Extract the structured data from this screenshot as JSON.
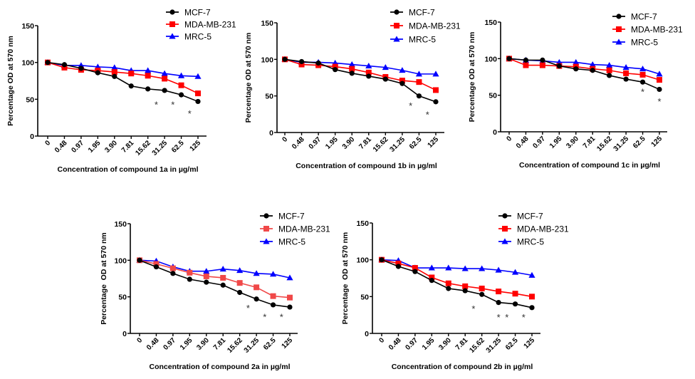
{
  "chart_data": [
    {
      "type": "line",
      "id": "1a",
      "title": "",
      "xlabel": "Concentration of compound 1a in µg/ml",
      "ylabel": "Percentage OD at 570 nm",
      "categories": [
        "0",
        "0.48",
        "0.97",
        "1.95",
        "3.90",
        "7.81",
        "15.62",
        "31.25",
        "62.5",
        "125"
      ],
      "yticks": [
        "0",
        "50",
        "100",
        "150"
      ],
      "ylim": [
        0,
        150
      ],
      "legend_position": "top-right",
      "series": [
        {
          "name": "MCF-7",
          "color": "#000000",
          "marker": "circle",
          "values": [
            100,
            97,
            92,
            86,
            81,
            68,
            64,
            62,
            56,
            47
          ]
        },
        {
          "name": "MDA-MB-231",
          "color": "#ff0000",
          "marker": "square",
          "values": [
            100,
            93,
            90,
            89,
            87,
            85,
            82,
            78,
            69,
            58
          ]
        },
        {
          "name": "MRC-5",
          "color": "#0000ff",
          "marker": "triangle",
          "values": [
            100,
            96,
            96,
            94,
            93,
            89,
            89,
            85,
            82,
            81
          ]
        }
      ],
      "annotations": [
        {
          "text": "*",
          "between": [
            "15.62",
            "31.25"
          ],
          "y": 44
        },
        {
          "text": "*",
          "between": [
            "31.25",
            "62.5"
          ],
          "y": 44
        },
        {
          "text": "*",
          "between": [
            "62.5",
            "125"
          ],
          "y": 32
        }
      ]
    },
    {
      "type": "line",
      "id": "1b",
      "title": "",
      "xlabel": "Concentration of compound 1b in µg/ml",
      "ylabel": "Percentage OD at 570 nm",
      "categories": [
        "0",
        "0.48",
        "0.97",
        "1.95",
        "3.90",
        "7.81",
        "15.62",
        "31.25",
        "62.5",
        "125"
      ],
      "yticks": [
        "0",
        "50",
        "100",
        "150"
      ],
      "ylim": [
        0,
        150
      ],
      "legend_position": "top-right",
      "series": [
        {
          "name": "MCF-7",
          "color": "#000000",
          "marker": "circle",
          "values": [
            100,
            97,
            95,
            86,
            81,
            77,
            73,
            67,
            50,
            42
          ]
        },
        {
          "name": "MDA-MB-231",
          "color": "#ff0000",
          "marker": "square",
          "values": [
            100,
            93,
            92,
            90,
            87,
            82,
            76,
            71,
            69,
            58
          ]
        },
        {
          "name": "MRC-5",
          "color": "#0000ff",
          "marker": "triangle",
          "values": [
            100,
            96,
            96,
            95,
            93,
            91,
            89,
            85,
            80,
            80
          ]
        }
      ],
      "annotations": [
        {
          "text": "*",
          "between": [
            "31.25",
            "62.5"
          ],
          "y": 38
        },
        {
          "text": "*",
          "between": [
            "62.5",
            "125"
          ],
          "y": 26
        }
      ]
    },
    {
      "type": "line",
      "id": "1c",
      "title": "",
      "xlabel": "Concentration of compound 1c in µg/ml",
      "ylabel": "Percentage OD at 570 nm",
      "categories": [
        "0",
        "0.48",
        "0.97",
        "1.95",
        "3.90",
        "7.81",
        "15.62",
        "31.25",
        "62.5",
        "125"
      ],
      "yticks": [
        "0",
        "50",
        "100",
        "150"
      ],
      "ylim": [
        0,
        150
      ],
      "legend_position": "top-right",
      "series": [
        {
          "name": "MCF-7",
          "color": "#000000",
          "marker": "circle",
          "values": [
            100,
            98,
            98,
            90,
            86,
            84,
            77,
            72,
            68,
            58
          ]
        },
        {
          "name": "MDA-MB-231",
          "color": "#ff0000",
          "marker": "square",
          "values": [
            100,
            91,
            91,
            90,
            89,
            86,
            84,
            80,
            78,
            71
          ]
        },
        {
          "name": "MRC-5",
          "color": "#0000ff",
          "marker": "triangle",
          "values": [
            100,
            98,
            97,
            95,
            95,
            92,
            91,
            88,
            86,
            79
          ]
        }
      ],
      "annotations": [
        {
          "text": "*",
          "between": [
            "62.5",
            "62.5"
          ],
          "y": 56
        },
        {
          "text": "*",
          "between": [
            "125",
            "125"
          ],
          "y": 43
        }
      ]
    },
    {
      "type": "line",
      "id": "2a",
      "title": "",
      "xlabel": "Concentration of compound 2a in µg/ml",
      "ylabel": "Percentage  OD at 570 nm",
      "categories": [
        "0",
        "0.48",
        "0.97",
        "1.95",
        "3.90",
        "7.81",
        "15.62",
        "31.25",
        "62.5",
        "125"
      ],
      "yticks": [
        "0",
        "50",
        "100",
        "150"
      ],
      "ylim": [
        0,
        150
      ],
      "legend_position": "top-right",
      "series": [
        {
          "name": "MCF-7",
          "color": "#000000",
          "marker": "circle",
          "values": [
            100,
            91,
            82,
            74,
            70,
            66,
            56,
            47,
            39,
            36
          ]
        },
        {
          "name": "MDA-MB-231",
          "color": "#f04848",
          "marker": "square",
          "values": [
            100,
            95,
            89,
            83,
            78,
            76,
            69,
            63,
            51,
            49
          ]
        },
        {
          "name": "MRC-5",
          "color": "#0000ff",
          "marker": "triangle",
          "values": [
            100,
            99,
            91,
            85,
            85,
            88,
            86,
            82,
            81,
            76
          ]
        }
      ],
      "annotations": [
        {
          "text": "*",
          "between": [
            "15.62",
            "31.25"
          ],
          "y": 36
        },
        {
          "text": "*",
          "between": [
            "31.25",
            "62.5"
          ],
          "y": 24
        },
        {
          "text": "*",
          "between": [
            "62.5",
            "125"
          ],
          "y": 24
        }
      ]
    },
    {
      "type": "line",
      "id": "2b",
      "title": "",
      "xlabel": "Concentration of compound 2b in µg/ml",
      "ylabel": "Percentage  OD at 570 nm",
      "categories": [
        "0",
        "0.48",
        "0.97",
        "1.95",
        "3.90",
        "7.81",
        "15.62",
        "31.25",
        "62.5",
        "125"
      ],
      "yticks": [
        "0",
        "50",
        "100",
        "150"
      ],
      "ylim": [
        0,
        150
      ],
      "legend_position": "top-right",
      "series": [
        {
          "name": "MCF-7",
          "color": "#000000",
          "marker": "circle",
          "values": [
            100,
            91,
            84,
            72,
            61,
            58,
            53,
            42,
            40,
            35
          ]
        },
        {
          "name": "MDA-MB-231",
          "color": "#ff0000",
          "marker": "square",
          "values": [
            100,
            95,
            89,
            76,
            68,
            64,
            61,
            57,
            54,
            50
          ]
        },
        {
          "name": "MRC-5",
          "color": "#0000ff",
          "marker": "triangle",
          "values": [
            100,
            99,
            89,
            89,
            89,
            88,
            88,
            86,
            83,
            79
          ]
        }
      ],
      "annotations": [
        {
          "text": "*",
          "between": [
            "7.81",
            "15.62"
          ],
          "y": 35
        },
        {
          "text": "*",
          "between": [
            "31.25",
            "31.25"
          ],
          "y": 23
        },
        {
          "text": "*",
          "between": [
            "31.25",
            "62.5"
          ],
          "y": 23
        },
        {
          "text": "*",
          "between": [
            "62.5",
            "125"
          ],
          "y": 23
        }
      ]
    }
  ]
}
